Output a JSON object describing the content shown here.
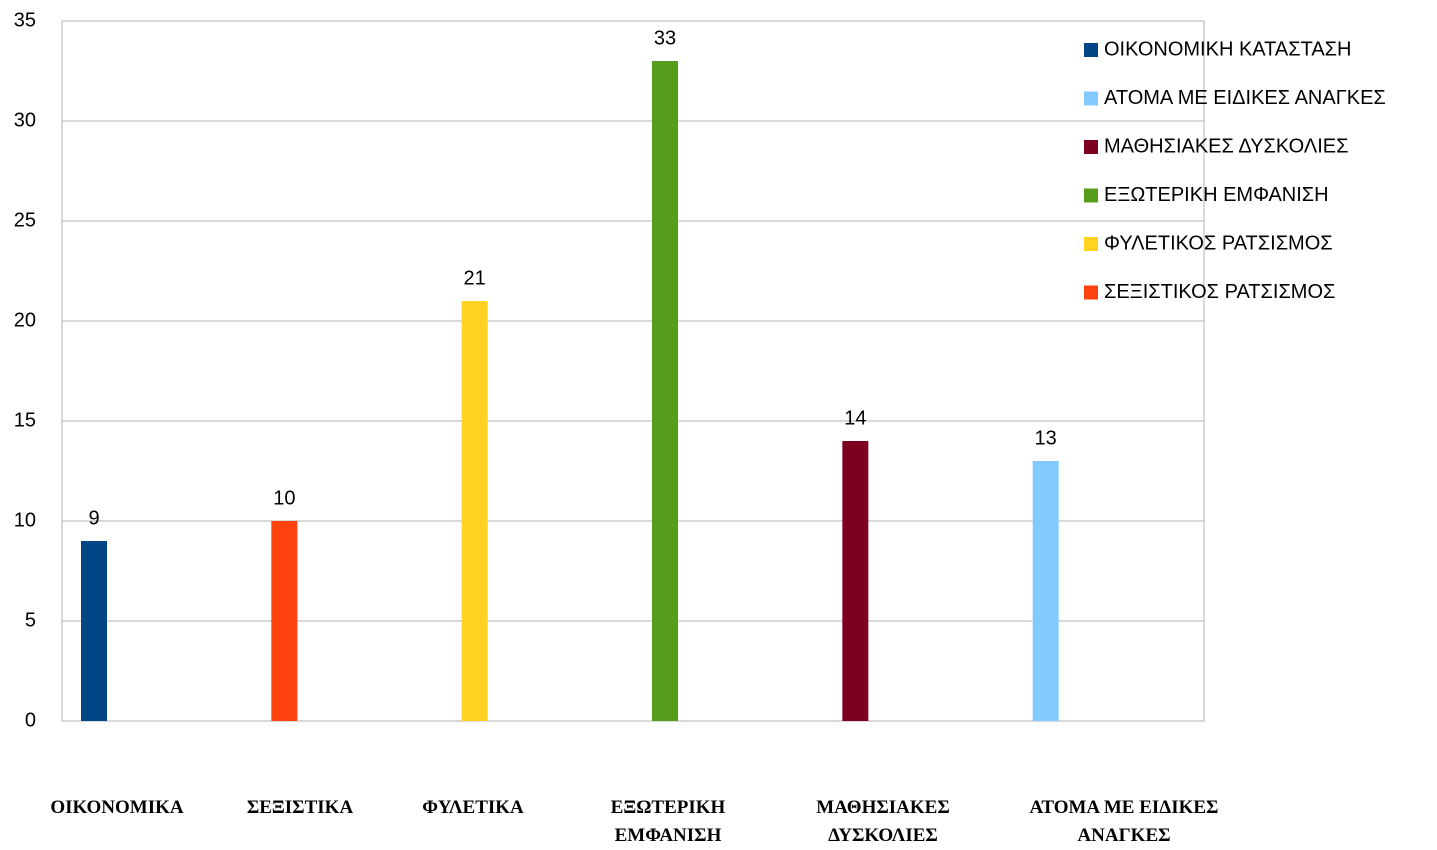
{
  "chart_data": {
    "type": "bar",
    "categories": [
      "ΟΙΚΟΝΟΜΙΚΑ",
      "ΣΕΞΙΣΤΙΚΑ",
      "ΦΥΛΕΤΙΚΑ",
      "ΕΞΩΤΕΡΙΚΗ ΕΜΦΑΝΙΣΗ",
      "ΜΑΘΗΣΙΑΚΕΣ ΔΥΣΚΟΛΙΕΣ",
      "ΑΤΟΜΑ ΜΕ ΕΙΔΙΚΕΣ ΑΝΑΓΚΕΣ"
    ],
    "series": [
      {
        "name": "ΟΙΚΟΝΟΜΙΚΗ ΚΑΤΑΣΤΑΣΗ",
        "color": "#004586",
        "values": [
          9,
          null,
          null,
          null,
          null,
          null
        ]
      },
      {
        "name": "ΑΤΟΜΑ ΜΕ ΕΙΔΙΚΕΣ ΑΝΑΓΚΕΣ",
        "color": "#83caff",
        "values": [
          null,
          null,
          null,
          null,
          null,
          13
        ]
      },
      {
        "name": "ΜΑΘΗΣΙΑΚΕΣ ΔΥΣΚΟΛΙΕΣ",
        "color": "#7e0021",
        "values": [
          null,
          null,
          null,
          null,
          14,
          null
        ]
      },
      {
        "name": "ΕΞΩΤΕΡΙΚΗ ΕΜΦΑΝΙΣΗ",
        "color": "#579d1c",
        "values": [
          null,
          null,
          null,
          33,
          null,
          null
        ]
      },
      {
        "name": "ΦΥΛΕΤΙΚΟΣ ΡΑΤΣΙΣΜΟΣ",
        "color": "#ffd320",
        "values": [
          null,
          null,
          21,
          null,
          null,
          null
        ]
      },
      {
        "name": "ΣΕΞΙΣΤΙΚΟΣ ΡΑΤΣΙΣΜΟΣ",
        "color": "#ff420e",
        "values": [
          null,
          10,
          null,
          null,
          null,
          null
        ]
      }
    ],
    "ylim": [
      0,
      35
    ],
    "yticks": [
      0,
      5,
      10,
      15,
      20,
      25,
      30,
      35
    ],
    "grid": true,
    "legend": "right"
  }
}
